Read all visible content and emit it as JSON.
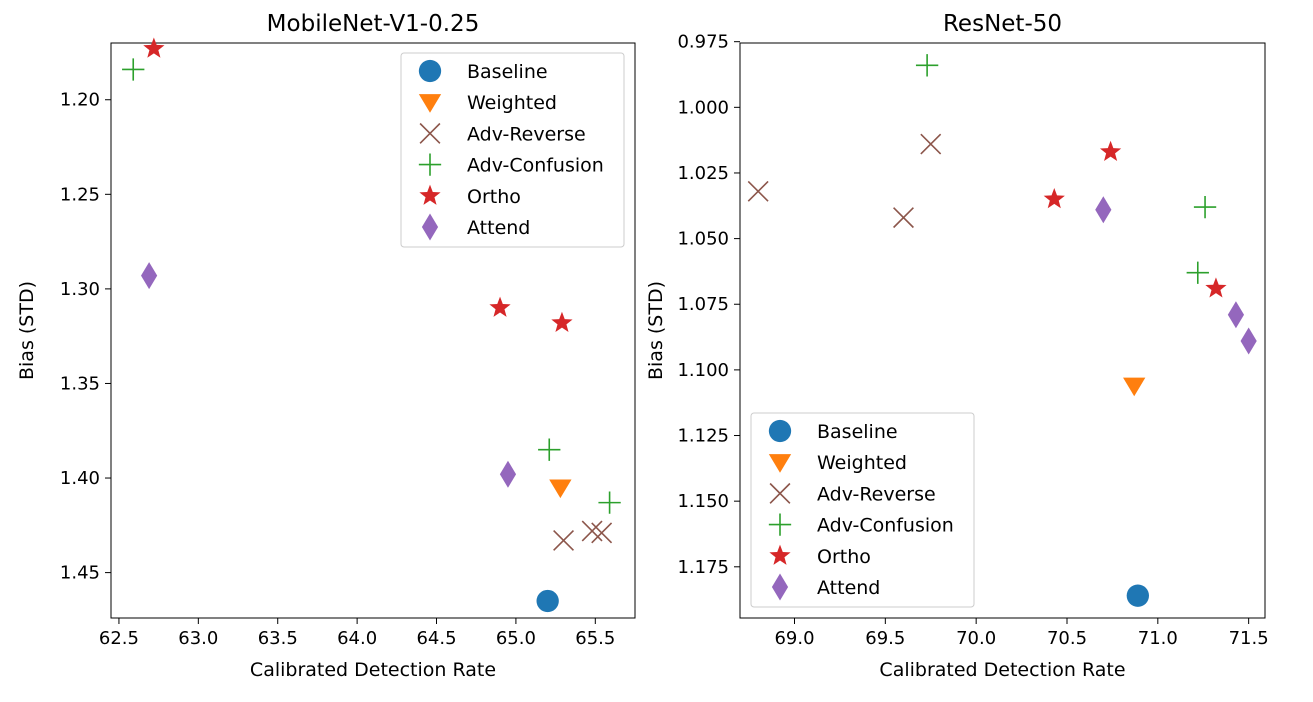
{
  "chart_data": [
    {
      "type": "scatter",
      "title": "MobileNet-V1-0.25",
      "xlabel": "Calibrated Detection Rate",
      "ylabel": "Bias (STD)",
      "xlim": [
        62.45,
        65.75
      ],
      "ylim": [
        1.474,
        1.17
      ],
      "y_inverted": true,
      "xticks": [
        "62.5",
        "63.0",
        "63.5",
        "64.0",
        "64.5",
        "65.0",
        "65.5"
      ],
      "yticks": [
        "1.20",
        "1.25",
        "1.30",
        "1.35",
        "1.40",
        "1.45"
      ],
      "legend_position": "top-right",
      "grid": false,
      "series": [
        {
          "name": "Baseline",
          "marker": "circle",
          "color": "#1f77b4",
          "points": [
            [
              65.2,
              1.465
            ]
          ]
        },
        {
          "name": "Weighted",
          "marker": "triangle-down",
          "color": "#ff7f0e",
          "points": [
            [
              65.28,
              1.405
            ]
          ]
        },
        {
          "name": "Adv-Reverse",
          "marker": "x",
          "color": "#8c564b",
          "points": [
            [
              65.3,
              1.433
            ],
            [
              65.48,
              1.428
            ],
            [
              65.54,
              1.429
            ]
          ]
        },
        {
          "name": "Adv-Confusion",
          "marker": "plus",
          "color": "#2ca02c",
          "points": [
            [
              62.59,
              1.184
            ],
            [
              65.21,
              1.385
            ],
            [
              65.59,
              1.413
            ]
          ]
        },
        {
          "name": "Ortho",
          "marker": "star",
          "color": "#d62728",
          "points": [
            [
              62.72,
              1.173
            ],
            [
              64.9,
              1.31
            ],
            [
              65.29,
              1.318
            ]
          ]
        },
        {
          "name": "Attend",
          "marker": "diamond",
          "color": "#9467bd",
          "points": [
            [
              62.69,
              1.293
            ],
            [
              64.95,
              1.398
            ]
          ]
        }
      ]
    },
    {
      "type": "scatter",
      "title": "ResNet-50",
      "xlabel": "Calibrated Detection Rate",
      "ylabel": "Bias (STD)",
      "xlim": [
        68.7,
        71.59
      ],
      "ylim": [
        1.1945,
        0.9755
      ],
      "y_inverted": true,
      "xticks": [
        "69.0",
        "69.5",
        "70.0",
        "70.5",
        "71.0",
        "71.5"
      ],
      "yticks": [
        "0.975",
        "1.000",
        "1.025",
        "1.050",
        "1.075",
        "1.100",
        "1.125",
        "1.150",
        "1.175"
      ],
      "legend_position": "bottom-left",
      "grid": false,
      "series": [
        {
          "name": "Baseline",
          "marker": "circle",
          "color": "#1f77b4",
          "points": [
            [
              70.89,
              1.186
            ]
          ]
        },
        {
          "name": "Weighted",
          "marker": "triangle-down",
          "color": "#ff7f0e",
          "points": [
            [
              70.87,
              1.106
            ]
          ]
        },
        {
          "name": "Adv-Reverse",
          "marker": "x",
          "color": "#8c564b",
          "points": [
            [
              68.8,
              1.032
            ],
            [
              69.6,
              1.042
            ],
            [
              69.75,
              1.014
            ]
          ]
        },
        {
          "name": "Adv-Confusion",
          "marker": "plus",
          "color": "#2ca02c",
          "points": [
            [
              69.73,
              0.984
            ],
            [
              71.26,
              1.038
            ],
            [
              71.22,
              1.063
            ]
          ]
        },
        {
          "name": "Ortho",
          "marker": "star",
          "color": "#d62728",
          "points": [
            [
              70.74,
              1.017
            ],
            [
              70.43,
              1.035
            ],
            [
              71.32,
              1.069
            ]
          ]
        },
        {
          "name": "Attend",
          "marker": "diamond",
          "color": "#9467bd",
          "points": [
            [
              70.7,
              1.039
            ],
            [
              71.43,
              1.079
            ],
            [
              71.5,
              1.089
            ]
          ]
        }
      ]
    }
  ]
}
